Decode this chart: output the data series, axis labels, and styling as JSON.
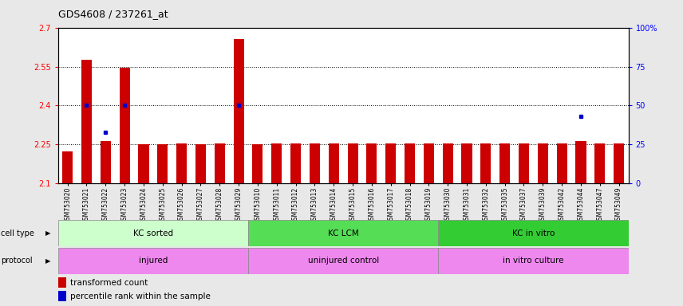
{
  "title": "GDS4608 / 237261_at",
  "samples": [
    "GSM753020",
    "GSM753021",
    "GSM753022",
    "GSM753023",
    "GSM753024",
    "GSM753025",
    "GSM753026",
    "GSM753027",
    "GSM753028",
    "GSM753029",
    "GSM753010",
    "GSM753011",
    "GSM753012",
    "GSM753013",
    "GSM753014",
    "GSM753015",
    "GSM753016",
    "GSM753017",
    "GSM753018",
    "GSM753019",
    "GSM753030",
    "GSM753031",
    "GSM753032",
    "GSM753035",
    "GSM753037",
    "GSM753039",
    "GSM753042",
    "GSM753044",
    "GSM753047",
    "GSM753049"
  ],
  "bar_values": [
    2.225,
    2.575,
    2.265,
    2.545,
    2.25,
    2.25,
    2.255,
    2.25,
    2.255,
    2.655,
    2.25,
    2.255,
    2.255,
    2.255,
    2.255,
    2.255,
    2.255,
    2.255,
    2.255,
    2.255,
    2.255,
    2.255,
    2.255,
    2.255,
    2.255,
    2.255,
    2.255,
    2.265,
    2.255,
    2.255
  ],
  "blue_dot_values": [
    0,
    50,
    33,
    50,
    0,
    0,
    0,
    0,
    0,
    50,
    0,
    0,
    0,
    0,
    0,
    0,
    0,
    0,
    0,
    0,
    0,
    0,
    0,
    0,
    0,
    0,
    0,
    43,
    0,
    0
  ],
  "ylim_left": [
    2.1,
    2.7
  ],
  "ylim_right": [
    0,
    100
  ],
  "yticks_left": [
    2.1,
    2.25,
    2.4,
    2.55,
    2.7
  ],
  "ytick_left_labels": [
    "2.1",
    "2.25",
    "2.4",
    "2.55",
    "2.7"
  ],
  "yticks_right": [
    0,
    25,
    50,
    75,
    100
  ],
  "ytick_right_labels": [
    "0",
    "25",
    "50",
    "75",
    "100%"
  ],
  "bar_color": "#cc0000",
  "dot_color": "#0000cc",
  "bar_bottom": 2.1,
  "ct_groups": [
    {
      "label": "KC sorted",
      "start": 0,
      "end": 10,
      "color": "#ccffcc"
    },
    {
      "label": "KC LCM",
      "start": 10,
      "end": 20,
      "color": "#55dd55"
    },
    {
      "label": "KC in vitro",
      "start": 20,
      "end": 30,
      "color": "#33cc33"
    }
  ],
  "pr_groups": [
    {
      "label": "injured",
      "start": 0,
      "end": 10,
      "color": "#ee88ee"
    },
    {
      "label": "uninjured control",
      "start": 10,
      "end": 20,
      "color": "#ee88ee"
    },
    {
      "label": "in vitro culture",
      "start": 20,
      "end": 30,
      "color": "#ee88ee"
    }
  ],
  "bg_color": "#e8e8e8",
  "plot_bg": "#ffffff",
  "bar_width": 0.55,
  "title_fontsize": 9,
  "tick_fontsize": 7,
  "xtick_fontsize": 5.5,
  "row_label_fontsize": 7,
  "group_label_fontsize": 7.5,
  "legend_fontsize": 7.5
}
